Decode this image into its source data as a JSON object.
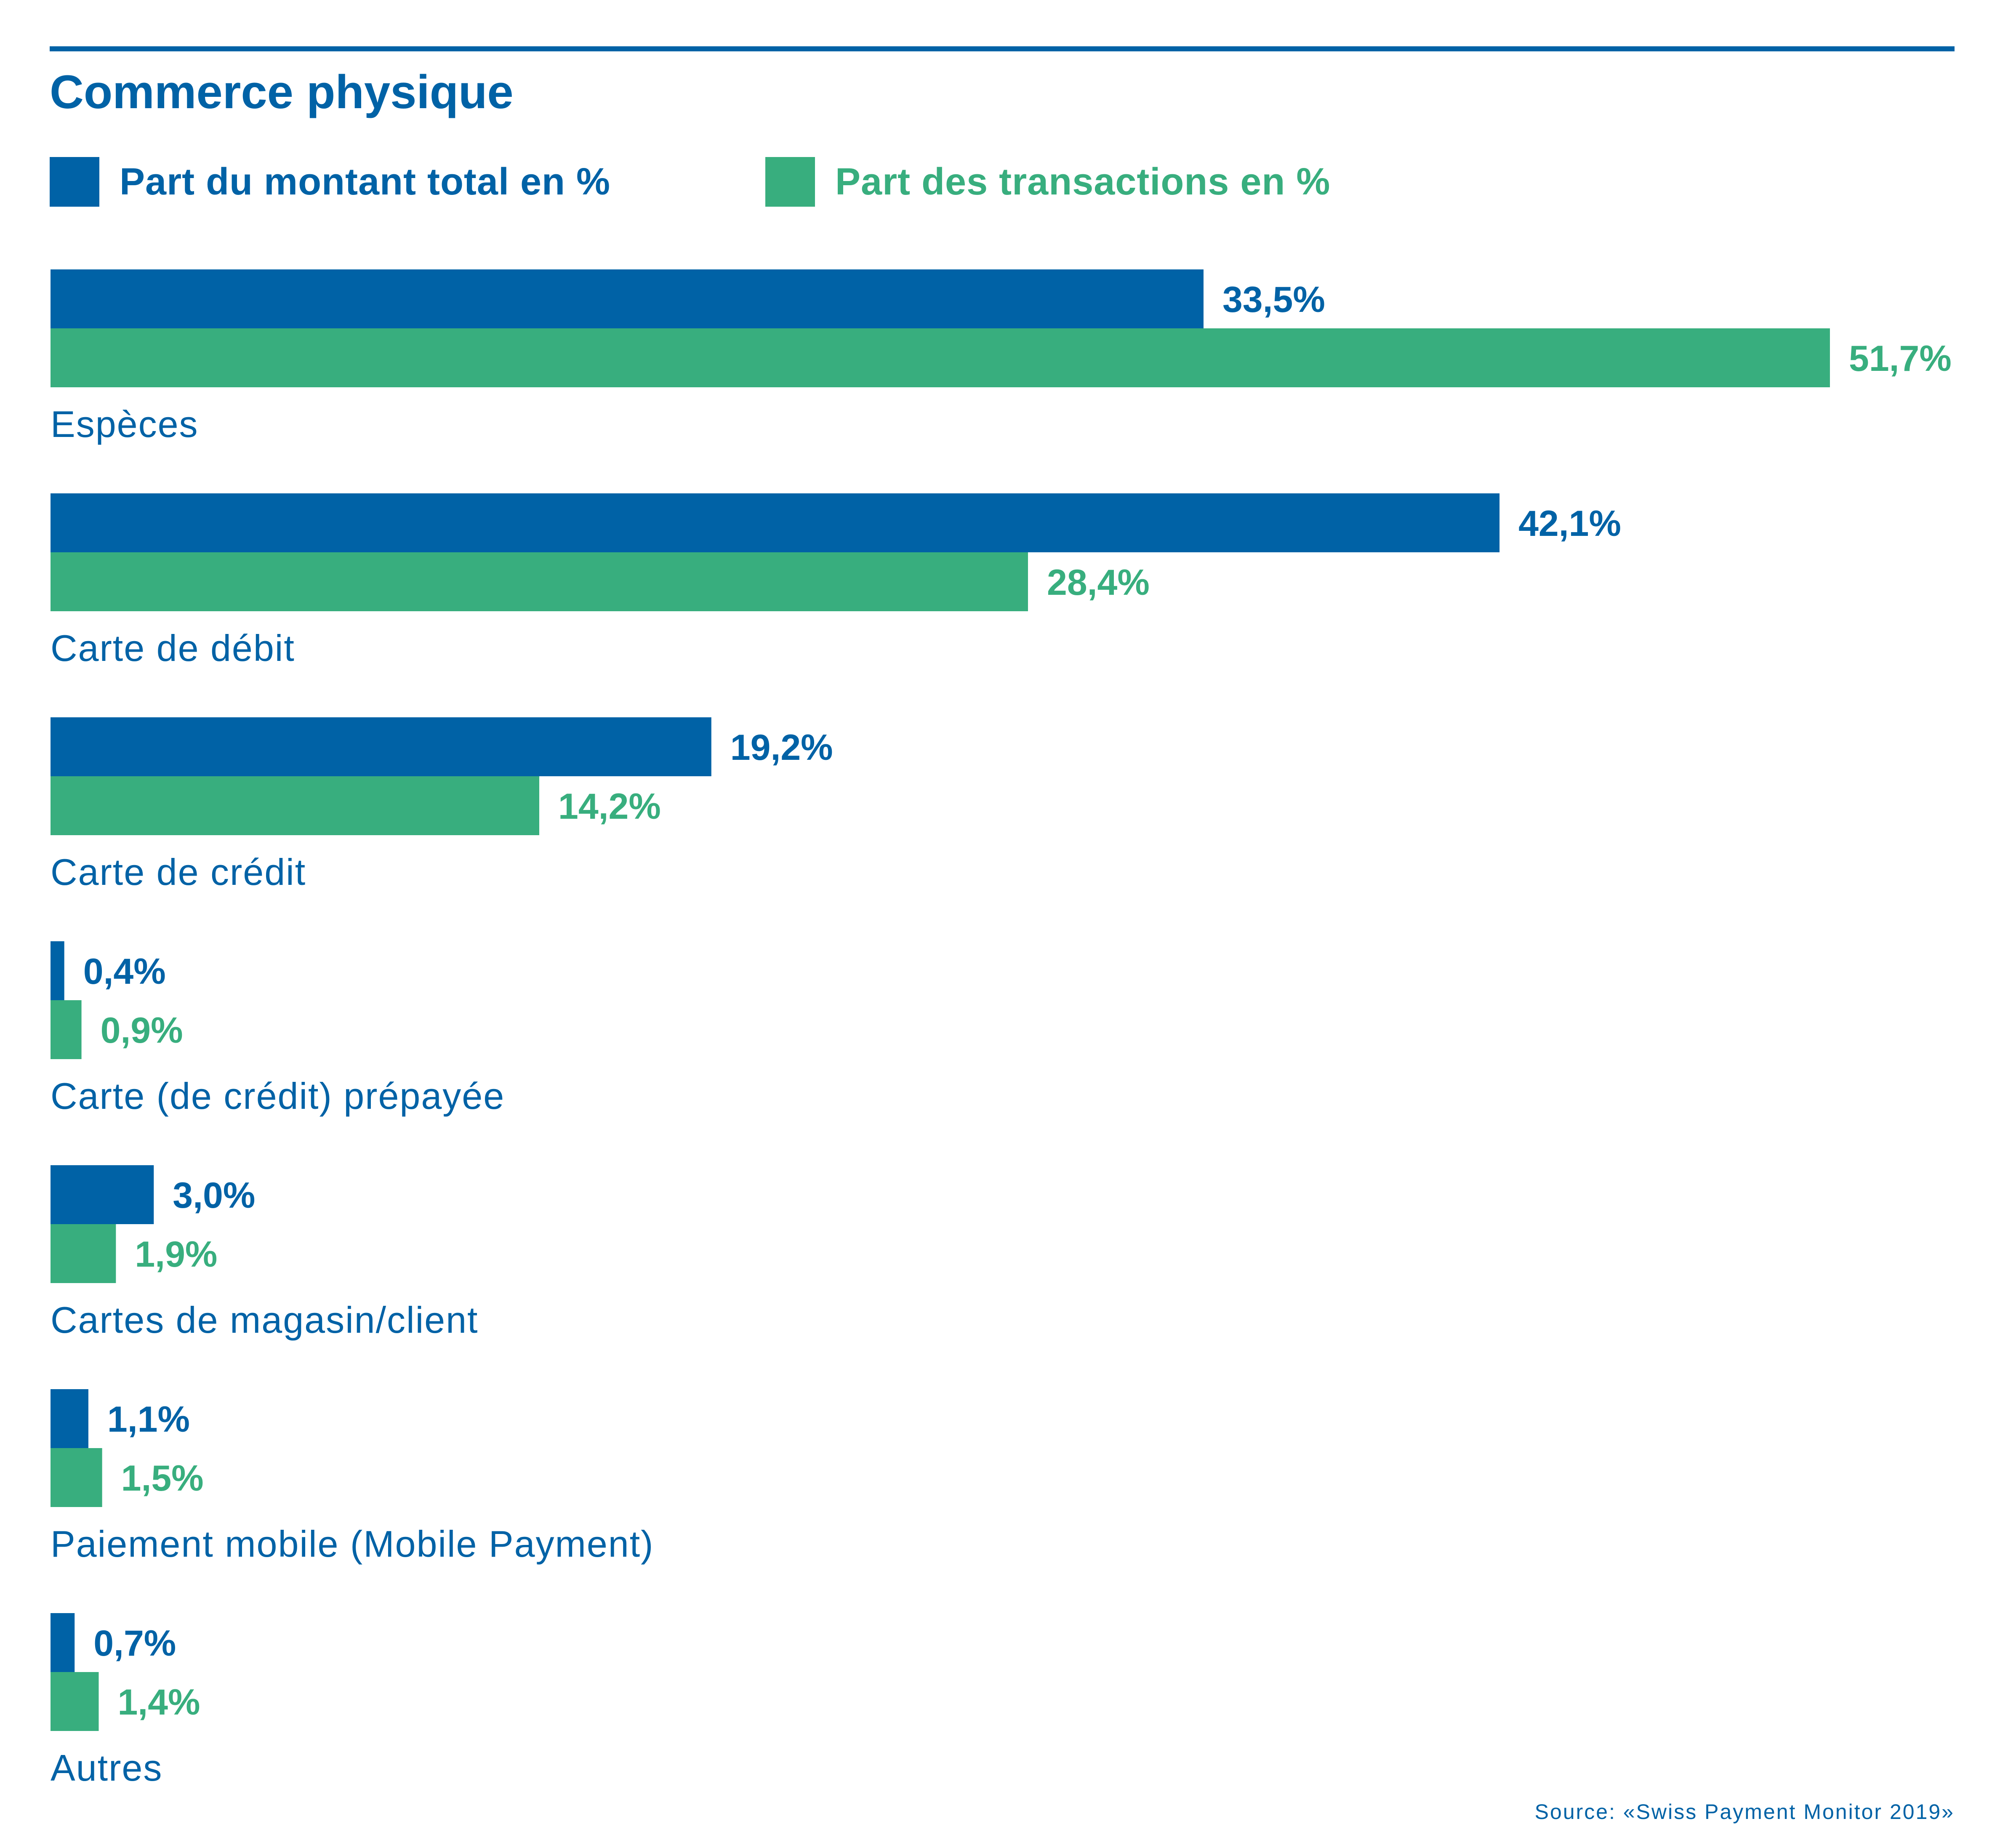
{
  "colors": {
    "blue": "#0062a6",
    "green": "#38ae7e"
  },
  "title": "Commerce physique",
  "legend": [
    {
      "label": "Part du montant total en %",
      "color": "#0062a6"
    },
    {
      "label": "Part des transactions en %",
      "color": "#38ae7e"
    }
  ],
  "chart_data": {
    "type": "bar",
    "orientation": "horizontal",
    "title": "Commerce physique",
    "categories": [
      "Espèces",
      "Carte de débit",
      "Carte de crédit",
      "Carte (de crédit) prépayée",
      "Cartes de magasin/client",
      "Paiement mobile (Mobile Payment)",
      "Autres"
    ],
    "series": [
      {
        "name": "Part du montant total en %",
        "color": "#0062a6",
        "values": [
          33.5,
          42.1,
          19.2,
          0.4,
          3.0,
          1.1,
          0.7
        ],
        "labels": [
          "33,5%",
          "42,1%",
          "19,2%",
          "0,4%",
          "3,0%",
          "1,1%",
          "0,7%"
        ]
      },
      {
        "name": "Part des transactions en %",
        "color": "#38ae7e",
        "values": [
          51.7,
          28.4,
          14.2,
          0.9,
          1.9,
          1.5,
          1.4
        ],
        "labels": [
          "51,7%",
          "28,4%",
          "14,2%",
          "0,9%",
          "1,9%",
          "1,5%",
          "1,4%"
        ]
      }
    ],
    "xlim": [
      0,
      51.7
    ],
    "grid": false,
    "legend_position": "top-left"
  },
  "source": "Source: «Swiss Payment Monitor 2019»"
}
